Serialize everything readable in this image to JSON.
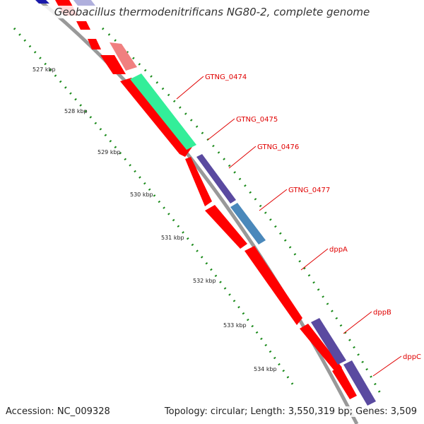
{
  "title": "Geobacillus thermodenitrificans NG80-2, complete genome",
  "footer": {
    "accession": "Accession: NC_009328",
    "summary": "Topology: circular; Length: 3,550,319 bp; Genes: 3,509"
  },
  "kbp_labels": [
    "527 kbp",
    "528 kbp",
    "529 kbp",
    "530 kbp",
    "531 kbp",
    "532 kbp",
    "533 kbp",
    "534 kbp"
  ],
  "gene_labels": [
    "GTNG_0474",
    "GTNG_0475",
    "GTNG_0476",
    "GTNG_0477",
    "dppA",
    "dppB",
    "dppC"
  ],
  "colors": {
    "cds": "#ff0000",
    "highlight_green": "#33ee99",
    "purple": "#5a4aa0",
    "steelblue": "#4a88bb",
    "backbone": "#888888",
    "ticks": "#1a8a1a",
    "label": "#e00000"
  }
}
